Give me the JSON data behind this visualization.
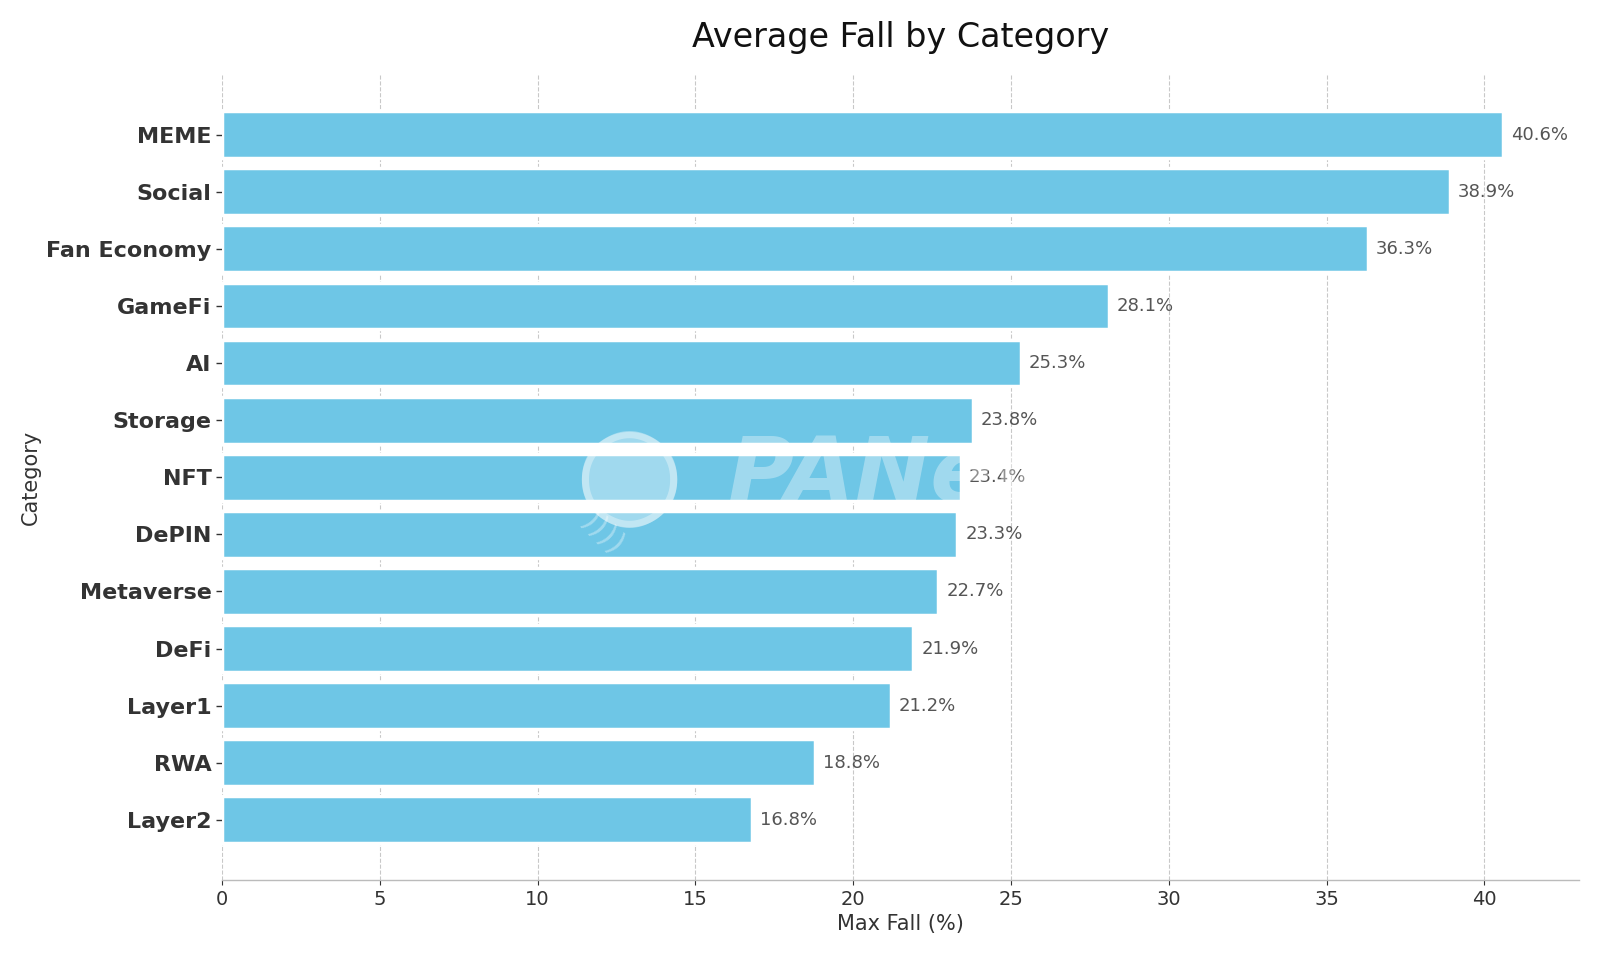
{
  "title": "Average Fall by Category",
  "xlabel": "Max Fall (%)",
  "ylabel": "Category",
  "categories": [
    "Layer2",
    "RWA",
    "Layer1",
    "DeFi",
    "Metaverse",
    "DePIN",
    "NFT",
    "Storage",
    "AI",
    "GameFi",
    "Fan Economy",
    "Social",
    "MEME"
  ],
  "values": [
    16.8,
    18.8,
    21.2,
    21.9,
    22.7,
    23.3,
    23.4,
    23.8,
    25.3,
    28.1,
    36.3,
    38.9,
    40.6
  ],
  "bar_color": "#6EC6E6",
  "label_color": "#555555",
  "background_color": "#FFFFFF",
  "grid_color": "#BBBBBB",
  "title_fontsize": 24,
  "axis_label_fontsize": 15,
  "tick_fontsize": 16,
  "value_label_fontsize": 13,
  "xlim": [
    0,
    43
  ]
}
